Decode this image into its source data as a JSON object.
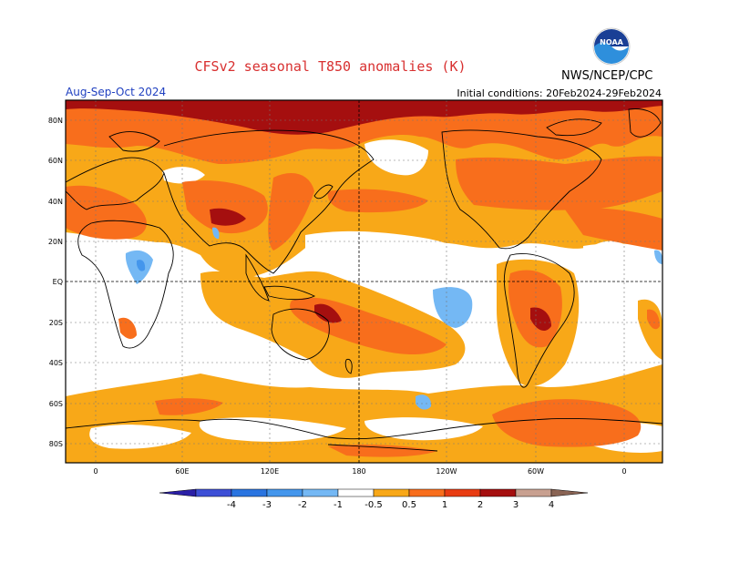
{
  "header": {
    "title": "CFSv2 seasonal T850 anomalies (K)",
    "period": "Aug-Sep-Oct 2024",
    "initial_conditions": "Initial conditions: 20Feb2024-29Feb2024",
    "agency": "NWS/NCEP/CPC",
    "logo_text": "NOAA"
  },
  "map": {
    "lat_labels": [
      "80N",
      "60N",
      "40N",
      "20N",
      "EQ",
      "20S",
      "40S",
      "60S",
      "80S"
    ],
    "lon_labels": [
      "0",
      "60E",
      "120E",
      "180",
      "120W",
      "60W",
      "0"
    ]
  },
  "colorbar": {
    "labels": [
      "-4",
      "-3",
      "-2",
      "-1",
      "-0.5",
      "0.5",
      "1",
      "2",
      "3",
      "4"
    ],
    "colors": [
      "#2a1fa6",
      "#3d4fd6",
      "#2a74e0",
      "#4496ec",
      "#74b8f4",
      "#ffffff",
      "#f8a818",
      "#f86e1c",
      "#e83c12",
      "#a50f0f",
      "#c8a090",
      "#8a6454"
    ]
  }
}
